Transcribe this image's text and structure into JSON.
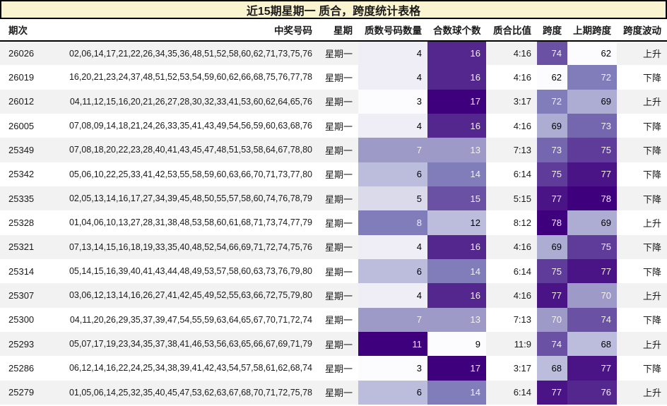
{
  "chart_data": {
    "type": "table",
    "title": "近15期星期一 质合，跨度统计表格",
    "columns": [
      "期次",
      "中奖号码",
      "星期",
      "质数号码数量",
      "合数球个数",
      "质合比值",
      "跨度",
      "上期跨度",
      "跨度波动"
    ],
    "rows": [
      {
        "period": "26026",
        "numbers": "02,06,14,17,21,22,26,34,35,36,48,51,52,58,60,62,71,73,75,76",
        "weekday": "星期一",
        "prime": 4,
        "composite": 16,
        "ratio": "4:16",
        "span": 74,
        "prev_span": 62,
        "trend": "上升"
      },
      {
        "period": "26019",
        "numbers": "16,20,21,23,24,37,48,51,52,53,54,59,60,62,66,68,75,76,77,78",
        "weekday": "星期一",
        "prime": 4,
        "composite": 16,
        "ratio": "4:16",
        "span": 62,
        "prev_span": 72,
        "trend": "下降"
      },
      {
        "period": "26012",
        "numbers": "04,11,12,15,16,20,21,26,27,28,30,32,33,41,53,60,62,64,65,76",
        "weekday": "星期一",
        "prime": 3,
        "composite": 17,
        "ratio": "3:17",
        "span": 72,
        "prev_span": 69,
        "trend": "上升"
      },
      {
        "period": "26005",
        "numbers": "07,08,09,14,18,21,24,26,33,35,41,43,49,54,56,59,60,63,68,76",
        "weekday": "星期一",
        "prime": 4,
        "composite": 16,
        "ratio": "4:16",
        "span": 69,
        "prev_span": 73,
        "trend": "下降"
      },
      {
        "period": "25349",
        "numbers": "07,08,18,20,22,23,28,40,41,43,45,47,48,51,53,58,64,67,78,80",
        "weekday": "星期一",
        "prime": 7,
        "composite": 13,
        "ratio": "7:13",
        "span": 73,
        "prev_span": 75,
        "trend": "下降"
      },
      {
        "period": "25342",
        "numbers": "05,06,10,22,25,33,41,42,53,55,58,59,60,63,66,70,71,73,77,80",
        "weekday": "星期一",
        "prime": 6,
        "composite": 14,
        "ratio": "6:14",
        "span": 75,
        "prev_span": 77,
        "trend": "下降"
      },
      {
        "period": "25335",
        "numbers": "02,05,13,14,16,17,27,34,39,45,48,50,55,57,58,60,74,76,78,79",
        "weekday": "星期一",
        "prime": 5,
        "composite": 15,
        "ratio": "5:15",
        "span": 77,
        "prev_span": 78,
        "trend": "下降"
      },
      {
        "period": "25328",
        "numbers": "01,04,06,10,13,27,28,31,38,48,53,58,60,61,68,71,73,74,77,79",
        "weekday": "星期一",
        "prime": 8,
        "composite": 12,
        "ratio": "8:12",
        "span": 78,
        "prev_span": 69,
        "trend": "上升"
      },
      {
        "period": "25321",
        "numbers": "07,13,14,15,16,18,19,33,35,40,48,52,54,66,69,71,72,74,75,76",
        "weekday": "星期一",
        "prime": 4,
        "composite": 16,
        "ratio": "4:16",
        "span": 69,
        "prev_span": 75,
        "trend": "下降"
      },
      {
        "period": "25314",
        "numbers": "05,14,15,16,39,40,41,43,44,48,49,53,57,58,60,63,73,76,79,80",
        "weekday": "星期一",
        "prime": 6,
        "composite": 14,
        "ratio": "6:14",
        "span": 75,
        "prev_span": 77,
        "trend": "下降"
      },
      {
        "period": "25307",
        "numbers": "03,06,12,13,14,16,26,27,41,42,45,49,52,55,63,66,72,75,79,80",
        "weekday": "星期一",
        "prime": 4,
        "composite": 16,
        "ratio": "4:16",
        "span": 77,
        "prev_span": 70,
        "trend": "上升"
      },
      {
        "period": "25300",
        "numbers": "04,11,20,26,29,35,37,39,47,54,55,59,63,64,65,67,70,71,72,74",
        "weekday": "星期一",
        "prime": 7,
        "composite": 13,
        "ratio": "7:13",
        "span": 70,
        "prev_span": 74,
        "trend": "下降"
      },
      {
        "period": "25293",
        "numbers": "05,07,17,19,23,34,35,37,38,41,46,53,56,63,65,66,67,69,71,79",
        "weekday": "星期一",
        "prime": 11,
        "composite": 9,
        "ratio": "11:9",
        "span": 74,
        "prev_span": 68,
        "trend": "上升"
      },
      {
        "period": "25286",
        "numbers": "06,12,14,16,22,24,25,34,38,39,41,42,43,54,57,58,61,62,68,74",
        "weekday": "星期一",
        "prime": 3,
        "composite": 17,
        "ratio": "3:17",
        "span": 68,
        "prev_span": 77,
        "trend": "下降"
      },
      {
        "period": "25279",
        "numbers": "01,05,06,14,25,32,35,40,45,47,53,62,63,67,68,70,71,72,75,78",
        "weekday": "星期一",
        "prime": 6,
        "composite": 14,
        "ratio": "6:14",
        "span": 77,
        "prev_span": 76,
        "trend": "上升"
      }
    ],
    "heatmap": {
      "heat_columns": [
        "质数号码数量",
        "合数球个数",
        "跨度",
        "上期跨度"
      ],
      "colormap": "Purples",
      "normalization": "per-column min-max",
      "domains": {
        "prime": [
          3,
          11
        ],
        "composite": [
          9,
          17
        ],
        "span": [
          62,
          78
        ],
        "prev_span": [
          62,
          78
        ]
      }
    },
    "legend_position": "none",
    "grid": false
  },
  "colors": {
    "title_bg": "#fbf4d0",
    "title_border": "#000000",
    "header_border": "#000000",
    "row_stripe": "#f2f2f2",
    "row_white": "#ffffff",
    "text": "#1a1a1a",
    "heat_text_light": "#f1f1f1",
    "heat_text_dark": "#000000",
    "purples_colormap": [
      "#fcfbfd",
      "#efedf5",
      "#dadaeb",
      "#bcbddc",
      "#9e9ac8",
      "#807dba",
      "#6a51a3",
      "#54278f",
      "#3f007d"
    ]
  }
}
